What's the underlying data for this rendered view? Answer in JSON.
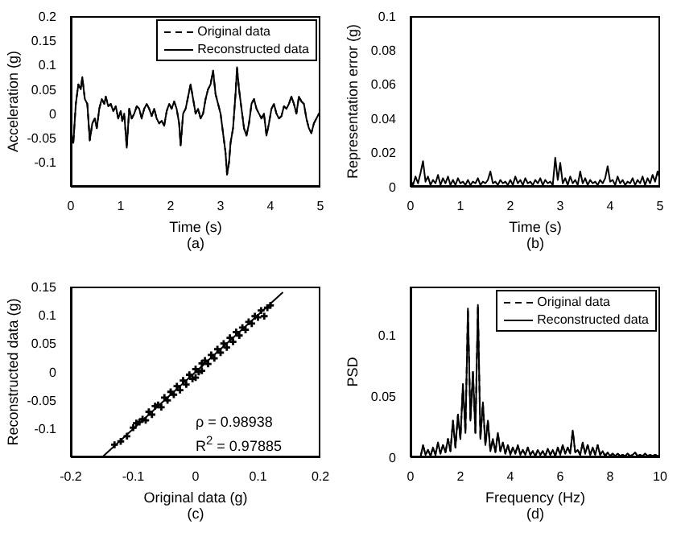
{
  "chart_data": [
    {
      "type": "line",
      "xlabel": "Time (s)",
      "ylabel": "Acceleration (g)",
      "xlim": [
        0,
        5
      ],
      "xticks": [
        0,
        1,
        2,
        3,
        4,
        5
      ],
      "ylim": [
        -0.15,
        0.2
      ],
      "yticks": [
        -0.1,
        -0.05,
        0,
        0.05,
        0.1,
        0.15,
        0.2
      ],
      "legend": "top right",
      "marker": "none",
      "annotations": [
        "(a)"
      ],
      "x": [
        0,
        0.05,
        0.1,
        0.15,
        0.2,
        0.23,
        0.28,
        0.33,
        0.38,
        0.43,
        0.48,
        0.52,
        0.57,
        0.62,
        0.67,
        0.7,
        0.75,
        0.8,
        0.85,
        0.9,
        0.95,
        1.0,
        1.03,
        1.07,
        1.12,
        1.17,
        1.22,
        1.27,
        1.32,
        1.37,
        1.42,
        1.47,
        1.52,
        1.57,
        1.62,
        1.67,
        1.72,
        1.77,
        1.82,
        1.87,
        1.92,
        1.97,
        2.02,
        2.07,
        2.12,
        2.17,
        2.2,
        2.25,
        2.3,
        2.35,
        2.4,
        2.45,
        2.5,
        2.55,
        2.6,
        2.65,
        2.7,
        2.75,
        2.8,
        2.85,
        2.9,
        2.95,
        3.0,
        3.05,
        3.1,
        3.13,
        3.17,
        3.2,
        3.25,
        3.3,
        3.33,
        3.37,
        3.42,
        3.47,
        3.52,
        3.57,
        3.62,
        3.67,
        3.72,
        3.77,
        3.82,
        3.87,
        3.92,
        3.97,
        4.02,
        4.07,
        4.12,
        4.17,
        4.22,
        4.27,
        4.32,
        4.37,
        4.42,
        4.47,
        4.52,
        4.57,
        4.62,
        4.67,
        4.72,
        4.77,
        4.82,
        4.87,
        4.92,
        4.97,
        5.0
      ],
      "series": [
        {
          "name": "Original data",
          "color": "#000000",
          "line_style": "dashed",
          "values": [
            -0.04,
            -0.06,
            0.02,
            0.06,
            0.05,
            0.075,
            0.03,
            0.02,
            -0.055,
            -0.02,
            -0.01,
            -0.03,
            0.01,
            0.03,
            0.02,
            0.035,
            0.015,
            0.02,
            0.005,
            0.015,
            -0.01,
            0.005,
            -0.015,
            0.0,
            -0.07,
            0.01,
            -0.01,
            0.0,
            0.015,
            0.01,
            -0.01,
            0.01,
            0.02,
            0.01,
            -0.005,
            0.01,
            -0.01,
            -0.02,
            -0.015,
            -0.025,
            0.005,
            0.02,
            0.01,
            0.025,
            0.01,
            -0.02,
            -0.065,
            0.0,
            0.01,
            0.035,
            0.06,
            0.03,
            0.0,
            0.01,
            -0.01,
            0.0,
            0.03,
            0.05,
            0.06,
            0.088,
            0.04,
            0.02,
            0.0,
            -0.04,
            -0.08,
            -0.125,
            -0.1,
            -0.06,
            -0.03,
            0.04,
            0.095,
            0.05,
            0.01,
            -0.03,
            -0.045,
            -0.02,
            0.02,
            0.03,
            0.01,
            0.0,
            -0.01,
            0.0,
            -0.045,
            -0.02,
            0.01,
            0.02,
            0.0,
            -0.01,
            -0.005,
            0.015,
            0.01,
            0.02,
            0.035,
            0.02,
            0.0,
            0.035,
            0.025,
            0.02,
            -0.01,
            -0.03,
            -0.04,
            -0.02,
            -0.01,
            0.0,
            0.0
          ]
        },
        {
          "name": "Reconstructed data",
          "color": "#000000",
          "line_style": "solid",
          "values": [
            -0.04,
            -0.06,
            0.02,
            0.06,
            0.05,
            0.075,
            0.03,
            0.02,
            -0.055,
            -0.02,
            -0.01,
            -0.03,
            0.01,
            0.03,
            0.02,
            0.035,
            0.015,
            0.02,
            0.005,
            0.015,
            -0.01,
            0.005,
            -0.015,
            0.0,
            -0.07,
            0.01,
            -0.01,
            0.0,
            0.015,
            0.01,
            -0.01,
            0.01,
            0.02,
            0.01,
            -0.005,
            0.01,
            -0.01,
            -0.02,
            -0.015,
            -0.025,
            0.005,
            0.02,
            0.01,
            0.025,
            0.01,
            -0.02,
            -0.065,
            0.0,
            0.01,
            0.035,
            0.06,
            0.03,
            0.0,
            0.01,
            -0.01,
            0.0,
            0.03,
            0.05,
            0.06,
            0.088,
            0.04,
            0.02,
            0.0,
            -0.04,
            -0.08,
            -0.125,
            -0.1,
            -0.06,
            -0.03,
            0.04,
            0.095,
            0.05,
            0.01,
            -0.03,
            -0.045,
            -0.02,
            0.02,
            0.03,
            0.01,
            0.0,
            -0.01,
            0.0,
            -0.045,
            -0.02,
            0.01,
            0.02,
            0.0,
            -0.01,
            -0.005,
            0.015,
            0.01,
            0.02,
            0.035,
            0.02,
            0.0,
            0.035,
            0.025,
            0.02,
            -0.01,
            -0.03,
            -0.04,
            -0.02,
            -0.01,
            0.0,
            0.0
          ]
        }
      ]
    },
    {
      "type": "line",
      "xlabel": "Time (s)",
      "ylabel": "Representation error (g)",
      "xlim": [
        0,
        5
      ],
      "xticks": [
        0,
        1,
        2,
        3,
        4,
        5
      ],
      "ylim": [
        0,
        0.1
      ],
      "yticks": [
        0,
        0.02,
        0.04,
        0.06,
        0.08,
        0.1
      ],
      "marker": "none",
      "annotations": [
        "(b)"
      ],
      "x": [
        0,
        0.05,
        0.1,
        0.15,
        0.2,
        0.25,
        0.3,
        0.35,
        0.4,
        0.45,
        0.5,
        0.55,
        0.6,
        0.65,
        0.7,
        0.75,
        0.8,
        0.85,
        0.9,
        0.95,
        1.0,
        1.05,
        1.1,
        1.15,
        1.2,
        1.25,
        1.3,
        1.35,
        1.4,
        1.45,
        1.5,
        1.55,
        1.6,
        1.65,
        1.7,
        1.75,
        1.8,
        1.85,
        1.9,
        1.95,
        2.0,
        2.05,
        2.1,
        2.15,
        2.2,
        2.25,
        2.3,
        2.35,
        2.4,
        2.45,
        2.5,
        2.55,
        2.6,
        2.65,
        2.7,
        2.75,
        2.8,
        2.85,
        2.9,
        2.95,
        3.0,
        3.05,
        3.1,
        3.15,
        3.2,
        3.25,
        3.3,
        3.35,
        3.4,
        3.45,
        3.5,
        3.55,
        3.6,
        3.65,
        3.7,
        3.75,
        3.8,
        3.85,
        3.9,
        3.95,
        4.0,
        4.05,
        4.1,
        4.15,
        4.2,
        4.25,
        4.3,
        4.35,
        4.4,
        4.45,
        4.5,
        4.55,
        4.6,
        4.65,
        4.7,
        4.75,
        4.8,
        4.85,
        4.9,
        4.95,
        5.0
      ],
      "series": [
        {
          "color": "#000000",
          "line_style": "solid",
          "values": [
            0.004,
            0.001,
            0.006,
            0.002,
            0.008,
            0.015,
            0.003,
            0.006,
            0.001,
            0.004,
            0.002,
            0.007,
            0.001,
            0.005,
            0.002,
            0.006,
            0.001,
            0.004,
            0.001,
            0.005,
            0.002,
            0.003,
            0.001,
            0.004,
            0.001,
            0.003,
            0.002,
            0.005,
            0.001,
            0.003,
            0.002,
            0.004,
            0.009,
            0.002,
            0.003,
            0.001,
            0.004,
            0.002,
            0.003,
            0.001,
            0.004,
            0.001,
            0.006,
            0.002,
            0.004,
            0.001,
            0.005,
            0.002,
            0.003,
            0.001,
            0.004,
            0.002,
            0.005,
            0.001,
            0.004,
            0.002,
            0.003,
            0.001,
            0.017,
            0.004,
            0.014,
            0.002,
            0.005,
            0.001,
            0.006,
            0.002,
            0.004,
            0.001,
            0.009,
            0.002,
            0.005,
            0.001,
            0.004,
            0.002,
            0.003,
            0.001,
            0.004,
            0.002,
            0.005,
            0.012,
            0.003,
            0.004,
            0.001,
            0.006,
            0.002,
            0.004,
            0.001,
            0.003,
            0.002,
            0.005,
            0.001,
            0.004,
            0.002,
            0.006,
            0.001,
            0.005,
            0.002,
            0.007,
            0.003,
            0.009,
            0.004
          ]
        }
      ]
    },
    {
      "type": "scatter",
      "xlabel": "Original data (g)",
      "ylabel": "Reconstructed data (g)",
      "xlim": [
        -0.2,
        0.2
      ],
      "xticks": [
        -0.2,
        -0.1,
        0,
        0.1,
        0.2
      ],
      "ylim": [
        -0.15,
        0.15
      ],
      "yticks": [
        -0.1,
        -0.05,
        0,
        0.05,
        0.1,
        0.15
      ],
      "marker": "cross",
      "annotations": [
        "ρ = 0.98938",
        "R$^{2}$ = 0.97885",
        "(c)"
      ],
      "series": [
        {
          "color": "#000000",
          "x": [
            -0.13,
            -0.12,
            -0.11,
            -0.1,
            -0.095,
            -0.09,
            -0.085,
            -0.08,
            -0.075,
            -0.07,
            -0.065,
            -0.06,
            -0.055,
            -0.05,
            -0.045,
            -0.04,
            -0.035,
            -0.03,
            -0.025,
            -0.02,
            -0.015,
            -0.01,
            -0.005,
            0,
            0,
            0.005,
            0.01,
            0.01,
            0.015,
            0.02,
            0.025,
            0.03,
            0.035,
            0.04,
            0.045,
            0.05,
            0.055,
            0.06,
            0.065,
            0.07,
            0.075,
            0.08,
            0.085,
            0.09,
            0.095,
            0.1,
            0.105,
            0.11,
            0.115,
            0.12
          ],
          "values": [
            -0.128,
            -0.122,
            -0.113,
            -0.098,
            -0.09,
            -0.088,
            -0.083,
            -0.085,
            -0.07,
            -0.075,
            -0.06,
            -0.058,
            -0.062,
            -0.045,
            -0.05,
            -0.035,
            -0.04,
            -0.025,
            -0.032,
            -0.015,
            -0.022,
            -0.005,
            -0.012,
            0.005,
            -0.01,
            0.0,
            0.015,
            0.002,
            0.02,
            0.014,
            0.03,
            0.024,
            0.04,
            0.034,
            0.05,
            0.043,
            0.06,
            0.053,
            0.07,
            0.064,
            0.078,
            0.074,
            0.088,
            0.085,
            0.098,
            0.096,
            0.108,
            0.098,
            0.113,
            0.117
          ]
        },
        {
          "type": "line",
          "color": "#000000",
          "line_style": "solid",
          "marker": "none",
          "x": [
            -0.15,
            0.14
          ],
          "values": [
            -0.15,
            0.14
          ]
        }
      ]
    },
    {
      "type": "line",
      "xlabel": "Frequency (Hz)",
      "ylabel": "PSD",
      "xlim": [
        0,
        10
      ],
      "xticks": [
        0,
        2,
        4,
        6,
        8,
        10
      ],
      "ylim": [
        0,
        0.14
      ],
      "yticks": [
        0,
        0.05,
        0.1
      ],
      "legend": "top right",
      "marker": "none",
      "annotations": [
        "(d)"
      ],
      "x": [
        0,
        0.1,
        0.2,
        0.3,
        0.4,
        0.5,
        0.6,
        0.7,
        0.8,
        0.9,
        1.0,
        1.1,
        1.2,
        1.3,
        1.4,
        1.5,
        1.6,
        1.7,
        1.8,
        1.9,
        2.0,
        2.1,
        2.2,
        2.3,
        2.4,
        2.5,
        2.6,
        2.7,
        2.8,
        2.9,
        3.0,
        3.1,
        3.2,
        3.3,
        3.4,
        3.5,
        3.6,
        3.7,
        3.8,
        3.9,
        4.0,
        4.1,
        4.2,
        4.3,
        4.4,
        4.5,
        4.6,
        4.7,
        4.8,
        4.9,
        5.0,
        5.1,
        5.2,
        5.3,
        5.4,
        5.5,
        5.6,
        5.7,
        5.8,
        5.9,
        6.0,
        6.1,
        6.2,
        6.3,
        6.4,
        6.5,
        6.6,
        6.7,
        6.8,
        6.9,
        7.0,
        7.1,
        7.2,
        7.3,
        7.4,
        7.5,
        7.6,
        7.7,
        7.8,
        7.9,
        8.0,
        8.1,
        8.2,
        8.3,
        8.4,
        8.5,
        8.6,
        8.7,
        8.8,
        8.9,
        9.0,
        9.1,
        9.2,
        9.3,
        9.4,
        9.5,
        9.6,
        9.7,
        9.8,
        9.9,
        10
      ],
      "series": [
        {
          "name": "Original data",
          "color": "#000000",
          "line_style": "dashed",
          "values": [
            0,
            0,
            0,
            0,
            0,
            0.01,
            0.002,
            0.006,
            0.001,
            0.008,
            0.002,
            0.012,
            0.003,
            0.01,
            0.004,
            0.015,
            0.005,
            0.03,
            0.008,
            0.035,
            0.015,
            0.06,
            0.02,
            0.122,
            0.03,
            0.07,
            0.02,
            0.125,
            0.015,
            0.045,
            0.01,
            0.03,
            0.005,
            0.015,
            0.004,
            0.02,
            0.005,
            0.012,
            0.003,
            0.01,
            0.002,
            0.008,
            0.003,
            0.01,
            0.002,
            0.006,
            0.002,
            0.008,
            0.002,
            0.005,
            0.001,
            0.006,
            0.002,
            0.005,
            0.001,
            0.007,
            0.002,
            0.006,
            0.001,
            0.008,
            0.002,
            0.01,
            0.003,
            0.008,
            0.003,
            0.022,
            0.004,
            0.006,
            0.002,
            0.012,
            0.003,
            0.01,
            0.002,
            0.008,
            0.002,
            0.01,
            0.002,
            0.005,
            0.001,
            0.004,
            0.001,
            0.003,
            0.001,
            0.003,
            0.001,
            0.002,
            0.001,
            0.003,
            0.001,
            0.002,
            0.004,
            0.001,
            0.002,
            0.001,
            0.003,
            0.001,
            0.002,
            0.001,
            0.002,
            0.001,
            0.001
          ]
        },
        {
          "name": "Reconstructed data",
          "color": "#000000",
          "line_style": "solid",
          "values": [
            0,
            0,
            0,
            0,
            0,
            0.01,
            0.002,
            0.006,
            0.001,
            0.008,
            0.002,
            0.012,
            0.003,
            0.01,
            0.004,
            0.015,
            0.005,
            0.03,
            0.008,
            0.035,
            0.015,
            0.06,
            0.02,
            0.122,
            0.03,
            0.07,
            0.02,
            0.125,
            0.015,
            0.045,
            0.01,
            0.03,
            0.005,
            0.015,
            0.004,
            0.02,
            0.005,
            0.012,
            0.003,
            0.01,
            0.002,
            0.008,
            0.003,
            0.01,
            0.002,
            0.006,
            0.002,
            0.008,
            0.002,
            0.005,
            0.001,
            0.006,
            0.002,
            0.005,
            0.001,
            0.007,
            0.002,
            0.006,
            0.001,
            0.008,
            0.002,
            0.01,
            0.003,
            0.008,
            0.003,
            0.022,
            0.004,
            0.006,
            0.002,
            0.012,
            0.003,
            0.01,
            0.002,
            0.008,
            0.002,
            0.01,
            0.002,
            0.005,
            0.001,
            0.004,
            0.001,
            0.003,
            0.001,
            0.003,
            0.001,
            0.002,
            0.001,
            0.003,
            0.001,
            0.002,
            0.004,
            0.001,
            0.002,
            0.001,
            0.003,
            0.001,
            0.002,
            0.001,
            0.002,
            0.001,
            0.001
          ]
        }
      ]
    }
  ]
}
